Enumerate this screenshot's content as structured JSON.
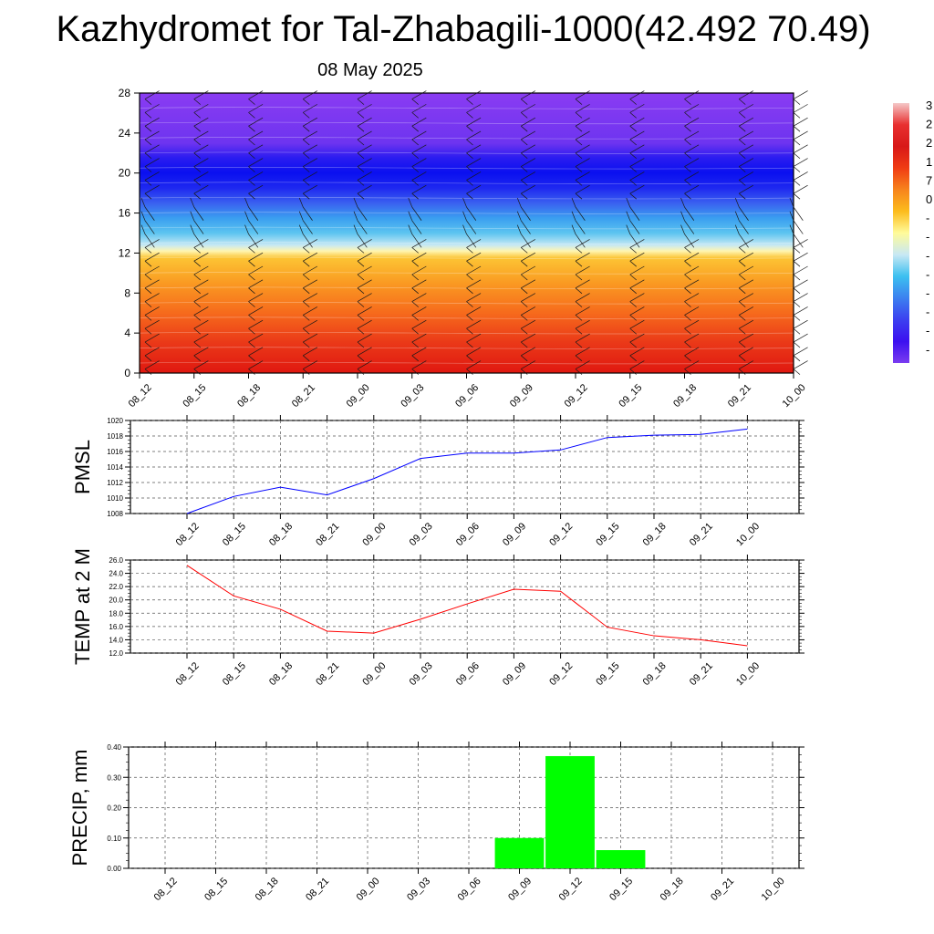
{
  "title": "Kazhydromet for Tal-Zhabagili-1000(42.492 70.49)",
  "subtitle": "08 May 2025",
  "time_labels": [
    "08_12",
    "08_15",
    "08_18",
    "08_21",
    "09_00",
    "09_03",
    "09_06",
    "09_09",
    "09_12",
    "09_15",
    "09_18",
    "09_21",
    "10_00"
  ],
  "colorbar": {
    "visible_labels": [
      "3",
      "2",
      "2",
      "1",
      "7",
      "0",
      "-",
      "-",
      "-",
      "-",
      "-",
      "-",
      "-",
      "-"
    ],
    "colors_top_to_bottom": [
      "#f5c8c8",
      "#e83030",
      "#d81818",
      "#f03c14",
      "#f7841c",
      "#fcbc1c",
      "#fffb9a",
      "#c8e8f4",
      "#3cc0f0",
      "#3c80f0",
      "#3c40f0",
      "#3c10f0",
      "#7a3cf0"
    ]
  },
  "chart_data": [
    {
      "type": "heatmap",
      "x": [
        "08_12",
        "08_15",
        "08_18",
        "08_21",
        "09_00",
        "09_03",
        "09_06",
        "09_09",
        "09_12",
        "09_15",
        "09_18",
        "09_21",
        "10_00"
      ],
      "ylim": [
        0,
        28
      ],
      "yticks": [
        0,
        4,
        8,
        12,
        16,
        20,
        24,
        28
      ],
      "ylabel": "",
      "overlay": "wind barbs",
      "color_bands_by_height": [
        {
          "from": 0,
          "to": 4,
          "color": "#e02818"
        },
        {
          "from": 4,
          "to": 8,
          "color": "#f36a1c"
        },
        {
          "from": 8,
          "to": 12,
          "color": "#fcbc2c"
        },
        {
          "from": 12,
          "to": 14,
          "color": "#bfe6f2"
        },
        {
          "from": 14,
          "to": 16,
          "color": "#3ab0f0"
        },
        {
          "from": 16,
          "to": 18,
          "color": "#3850f0"
        },
        {
          "from": 18,
          "to": 22,
          "color": "#1010f0"
        },
        {
          "from": 22,
          "to": 28,
          "color": "#8a3cf2"
        }
      ]
    },
    {
      "type": "line",
      "ylabel": "PMSL",
      "x": [
        "08_12",
        "08_15",
        "08_18",
        "08_21",
        "09_00",
        "09_03",
        "09_06",
        "09_09",
        "09_12",
        "09_15",
        "09_18",
        "09_21",
        "10_00"
      ],
      "values": [
        1008.0,
        1010.2,
        1011.4,
        1010.4,
        1012.5,
        1015.1,
        1015.8,
        1015.8,
        1016.2,
        1017.8,
        1018.1,
        1018.2,
        1018.9
      ],
      "ylim": [
        1008,
        1020
      ],
      "yticks": [
        "1008",
        "1010",
        "1012",
        "1014",
        "1016",
        "1018",
        "1020"
      ],
      "color": "#0000ff"
    },
    {
      "type": "line",
      "ylabel": "TEMP at 2 M",
      "x": [
        "08_12",
        "08_15",
        "08_18",
        "08_21",
        "09_00",
        "09_03",
        "09_06",
        "09_09",
        "09_12",
        "09_15",
        "09_18",
        "09_21",
        "10_00"
      ],
      "values": [
        25.2,
        20.6,
        18.6,
        15.3,
        15.0,
        17.1,
        19.4,
        21.6,
        21.3,
        15.9,
        14.6,
        14.0,
        13.1
      ],
      "ylim": [
        12,
        26
      ],
      "yticks": [
        "12.0",
        "14.0",
        "16.0",
        "18.0",
        "20.0",
        "22.0",
        "24.0",
        "26.0"
      ],
      "color": "#ff0000"
    },
    {
      "type": "bar",
      "ylabel": "PRECIP, mm",
      "categories": [
        "08_12",
        "08_15",
        "08_18",
        "08_21",
        "09_00",
        "09_03",
        "09_06",
        "09_09",
        "09_12",
        "09_15",
        "09_18",
        "09_21",
        "10_00"
      ],
      "values": [
        0,
        0,
        0,
        0,
        0,
        0,
        0,
        0.1,
        0.37,
        0.06,
        0,
        0,
        0
      ],
      "ylim": [
        0,
        0.4
      ],
      "yticks": [
        "0.00",
        "0.10",
        "0.20",
        "0.30",
        "0.40"
      ],
      "color": "#00ff00"
    }
  ]
}
